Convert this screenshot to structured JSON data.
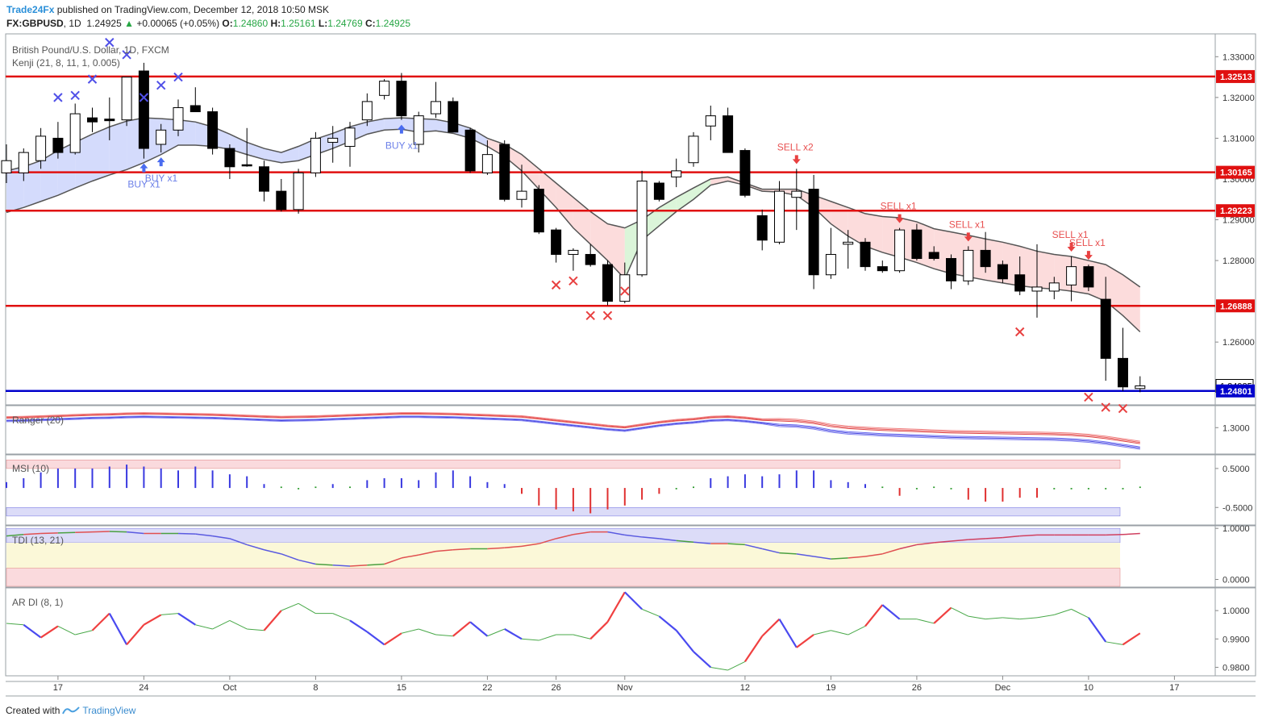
{
  "header": {
    "brand": "Trade24Fx",
    "published_text": "published on TradingView.com, December 12, 2018 10:50 MSK",
    "symbol": "FX:GBPUSD",
    "interval": "1D",
    "last": "1.24925",
    "change_arrow": "▲",
    "change": "+0.00065 (+0.05%)",
    "o_label": "O:",
    "open": "1.24860",
    "h_label": "H:",
    "high": "1.25161",
    "l_label": "L:",
    "low": "1.24769",
    "c_label": "C:",
    "close": "1.24925"
  },
  "legend": {
    "main_title": "British Pound/U.S. Dollar, 1D, FXCM",
    "kenji": "Kenji (21, 8, 11, 1, 0.005)",
    "ranger": "Ranger (20)",
    "msi": "MSI (10)",
    "tdi": "TDI (13, 21)",
    "ardi": "AR DI (8, 1)"
  },
  "footer": {
    "created_with": "Created with",
    "tradingview": "TradingView"
  },
  "colors": {
    "up_candle": "#ffffff",
    "down_candle": "#000000",
    "level_line": "#e01010",
    "support_line": "#0000cc",
    "buy_marker": "#4a6cf0",
    "sell_marker": "#e84040",
    "cross_blue": "#5050e8",
    "cross_red": "#e84040"
  },
  "chart_data": {
    "type": "candlestick",
    "x_axis_labels": [
      {
        "label": "17",
        "idx": 3
      },
      {
        "label": "24",
        "idx": 8
      },
      {
        "label": "Oct",
        "idx": 13
      },
      {
        "label": "8",
        "idx": 18
      },
      {
        "label": "15",
        "idx": 23
      },
      {
        "label": "22",
        "idx": 28
      },
      {
        "label": "26",
        "idx": 32
      },
      {
        "label": "Nov",
        "idx": 36
      },
      {
        "label": "12",
        "idx": 43
      },
      {
        "label": "19",
        "idx": 48
      },
      {
        "label": "26",
        "idx": 53
      },
      {
        "label": "Dec",
        "idx": 58
      },
      {
        "label": "10",
        "idx": 63
      },
      {
        "label": "17",
        "idx": 68
      }
    ],
    "price_axis": {
      "ticks": [
        "1.33000",
        "1.32000",
        "1.31000",
        "1.30000",
        "1.29000",
        "1.28000",
        "1.26000"
      ],
      "tick_values": [
        1.33,
        1.32,
        1.31,
        1.3,
        1.29,
        1.28,
        1.26
      ],
      "ylim": [
        1.2446,
        1.3356
      ]
    },
    "price_labels": [
      {
        "value": 1.32513,
        "label": "1.32513",
        "style": "red"
      },
      {
        "value": 1.30165,
        "label": "1.30165",
        "style": "red"
      },
      {
        "value": 1.29223,
        "label": "1.29223",
        "style": "red"
      },
      {
        "value": 1.26888,
        "label": "1.26888",
        "style": "red"
      },
      {
        "value": 1.24925,
        "label": "1.24925",
        "style": "plain"
      },
      {
        "value": 1.24801,
        "label": "1.24801",
        "style": "blue"
      }
    ],
    "horizontal_levels": [
      {
        "value": 1.32513,
        "color": "red"
      },
      {
        "value": 1.30165,
        "color": "red"
      },
      {
        "value": 1.29223,
        "color": "red"
      },
      {
        "value": 1.26888,
        "color": "red"
      },
      {
        "value": 1.24801,
        "color": "blue"
      }
    ],
    "candles": [
      {
        "o": 1.3015,
        "h": 1.3085,
        "l": 1.299,
        "c": 1.3045
      },
      {
        "o": 1.3015,
        "h": 1.3075,
        "l": 1.2995,
        "c": 1.3065
      },
      {
        "o": 1.3045,
        "h": 1.3125,
        "l": 1.3025,
        "c": 1.3105
      },
      {
        "o": 1.31,
        "h": 1.314,
        "l": 1.305,
        "c": 1.3065
      },
      {
        "o": 1.3065,
        "h": 1.3185,
        "l": 1.306,
        "c": 1.316
      },
      {
        "o": 1.315,
        "h": 1.3175,
        "l": 1.3115,
        "c": 1.314
      },
      {
        "o": 1.3147,
        "h": 1.32,
        "l": 1.3095,
        "c": 1.3143
      },
      {
        "o": 1.3145,
        "h": 1.3245,
        "l": 1.313,
        "c": 1.325
      },
      {
        "o": 1.3265,
        "h": 1.3285,
        "l": 1.305,
        "c": 1.3075
      },
      {
        "o": 1.3085,
        "h": 1.3135,
        "l": 1.3065,
        "c": 1.312
      },
      {
        "o": 1.312,
        "h": 1.3195,
        "l": 1.3105,
        "c": 1.3175
      },
      {
        "o": 1.318,
        "h": 1.3225,
        "l": 1.3165,
        "c": 1.3165
      },
      {
        "o": 1.3165,
        "h": 1.3175,
        "l": 1.306,
        "c": 1.3075
      },
      {
        "o": 1.3075,
        "h": 1.3085,
        "l": 1.3,
        "c": 1.303
      },
      {
        "o": 1.3035,
        "h": 1.3125,
        "l": 1.303,
        "c": 1.3032
      },
      {
        "o": 1.303,
        "h": 1.3045,
        "l": 1.2945,
        "c": 1.297
      },
      {
        "o": 1.297,
        "h": 1.3,
        "l": 1.292,
        "c": 1.2925
      },
      {
        "o": 1.2925,
        "h": 1.3025,
        "l": 1.2915,
        "c": 1.3015
      },
      {
        "o": 1.3015,
        "h": 1.3115,
        "l": 1.3005,
        "c": 1.31
      },
      {
        "o": 1.309,
        "h": 1.313,
        "l": 1.304,
        "c": 1.31
      },
      {
        "o": 1.308,
        "h": 1.314,
        "l": 1.303,
        "c": 1.3125
      },
      {
        "o": 1.3145,
        "h": 1.321,
        "l": 1.313,
        "c": 1.319
      },
      {
        "o": 1.3205,
        "h": 1.3245,
        "l": 1.3195,
        "c": 1.324
      },
      {
        "o": 1.324,
        "h": 1.326,
        "l": 1.3145,
        "c": 1.3155
      },
      {
        "o": 1.3085,
        "h": 1.3165,
        "l": 1.3065,
        "c": 1.3155
      },
      {
        "o": 1.316,
        "h": 1.3238,
        "l": 1.315,
        "c": 1.319
      },
      {
        "o": 1.319,
        "h": 1.32,
        "l": 1.3115,
        "c": 1.3115
      },
      {
        "o": 1.312,
        "h": 1.3125,
        "l": 1.3015,
        "c": 1.302
      },
      {
        "o": 1.3015,
        "h": 1.3095,
        "l": 1.301,
        "c": 1.306
      },
      {
        "o": 1.3085,
        "h": 1.3095,
        "l": 1.2945,
        "c": 1.295
      },
      {
        "o": 1.295,
        "h": 1.3035,
        "l": 1.293,
        "c": 1.297
      },
      {
        "o": 1.2975,
        "h": 1.2985,
        "l": 1.2865,
        "c": 1.287
      },
      {
        "o": 1.2875,
        "h": 1.288,
        "l": 1.2795,
        "c": 1.2815
      },
      {
        "o": 1.2815,
        "h": 1.283,
        "l": 1.2775,
        "c": 1.2825
      },
      {
        "o": 1.2815,
        "h": 1.284,
        "l": 1.2785,
        "c": 1.279
      },
      {
        "o": 1.279,
        "h": 1.28,
        "l": 1.269,
        "c": 1.27
      },
      {
        "o": 1.27,
        "h": 1.2795,
        "l": 1.2695,
        "c": 1.2765
      },
      {
        "o": 1.2765,
        "h": 1.302,
        "l": 1.276,
        "c": 1.2995
      },
      {
        "o": 1.299,
        "h": 1.2995,
        "l": 1.2945,
        "c": 1.295
      },
      {
        "o": 1.3005,
        "h": 1.305,
        "l": 1.298,
        "c": 1.302
      },
      {
        "o": 1.304,
        "h": 1.3115,
        "l": 1.303,
        "c": 1.3105
      },
      {
        "o": 1.313,
        "h": 1.318,
        "l": 1.3095,
        "c": 1.3155
      },
      {
        "o": 1.3155,
        "h": 1.3175,
        "l": 1.3065,
        "c": 1.3065
      },
      {
        "o": 1.307,
        "h": 1.3075,
        "l": 1.2955,
        "c": 1.296
      },
      {
        "o": 1.291,
        "h": 1.2925,
        "l": 1.2825,
        "c": 1.285
      },
      {
        "o": 1.2845,
        "h": 1.2995,
        "l": 1.284,
        "c": 1.297
      },
      {
        "o": 1.2955,
        "h": 1.3025,
        "l": 1.2875,
        "c": 1.297
      },
      {
        "o": 1.2975,
        "h": 1.301,
        "l": 1.273,
        "c": 1.2765
      },
      {
        "o": 1.2765,
        "h": 1.288,
        "l": 1.2755,
        "c": 1.2815
      },
      {
        "o": 1.284,
        "h": 1.2875,
        "l": 1.278,
        "c": 1.2845
      },
      {
        "o": 1.2845,
        "h": 1.2855,
        "l": 1.2775,
        "c": 1.2785
      },
      {
        "o": 1.2785,
        "h": 1.28,
        "l": 1.277,
        "c": 1.2775
      },
      {
        "o": 1.2775,
        "h": 1.288,
        "l": 1.277,
        "c": 1.2875
      },
      {
        "o": 1.2875,
        "h": 1.289,
        "l": 1.28,
        "c": 1.2805
      },
      {
        "o": 1.282,
        "h": 1.2835,
        "l": 1.28,
        "c": 1.2805
      },
      {
        "o": 1.2805,
        "h": 1.2815,
        "l": 1.273,
        "c": 1.275
      },
      {
        "o": 1.275,
        "h": 1.2835,
        "l": 1.274,
        "c": 1.2825
      },
      {
        "o": 1.2825,
        "h": 1.287,
        "l": 1.277,
        "c": 1.2785
      },
      {
        "o": 1.279,
        "h": 1.28,
        "l": 1.2745,
        "c": 1.2755
      },
      {
        "o": 1.2765,
        "h": 1.281,
        "l": 1.2715,
        "c": 1.2725
      },
      {
        "o": 1.2725,
        "h": 1.284,
        "l": 1.266,
        "c": 1.2735
      },
      {
        "o": 1.2725,
        "h": 1.276,
        "l": 1.2705,
        "c": 1.2745
      },
      {
        "o": 1.274,
        "h": 1.281,
        "l": 1.27,
        "c": 1.2785
      },
      {
        "o": 1.2785,
        "h": 1.279,
        "l": 1.2725,
        "c": 1.2735
      },
      {
        "o": 1.2705,
        "h": 1.276,
        "l": 1.2505,
        "c": 1.256
      },
      {
        "o": 1.256,
        "h": 1.2635,
        "l": 1.248,
        "c": 1.249
      },
      {
        "o": 1.2486,
        "h": 1.25161,
        "l": 1.24769,
        "c": 1.24925
      }
    ],
    "kenji_upper": [
      1.302,
      1.303,
      1.3045,
      1.307,
      1.309,
      1.311,
      1.3128,
      1.3142,
      1.315,
      1.3148,
      1.3145,
      1.314,
      1.3128,
      1.311,
      1.309,
      1.3075,
      1.3065,
      1.308,
      1.3098,
      1.3112,
      1.3128,
      1.314,
      1.3148,
      1.315,
      1.3148,
      1.3146,
      1.3138,
      1.3125,
      1.31,
      1.3085,
      1.306,
      1.3025,
      1.299,
      1.2955,
      1.292,
      1.289,
      1.288,
      1.29,
      1.293,
      1.2955,
      1.2978,
      1.3,
      1.3005,
      1.299,
      1.2975,
      1.2975,
      1.2975,
      1.296,
      1.2945,
      1.293,
      1.2915,
      1.2908,
      1.2905,
      1.2895,
      1.2878,
      1.287,
      1.2862,
      1.2853,
      1.2845,
      1.2835,
      1.2823,
      1.2815,
      1.281,
      1.28,
      1.279,
      1.2765,
      1.2735
    ],
    "kenji_lower": [
      1.2918,
      1.293,
      1.2945,
      1.296,
      1.2978,
      1.2995,
      1.301,
      1.3023,
      1.304,
      1.306,
      1.3083,
      1.3083,
      1.308,
      1.3073,
      1.306,
      1.3048,
      1.304,
      1.3045,
      1.306,
      1.3075,
      1.3092,
      1.311,
      1.312,
      1.3122,
      1.3115,
      1.3118,
      1.3112,
      1.31,
      1.308,
      1.3055,
      1.302,
      1.2975,
      1.293,
      1.288,
      1.284,
      1.28,
      1.2755,
      1.285,
      1.2885,
      1.292,
      1.295,
      1.2985,
      1.2995,
      1.2985,
      1.297,
      1.2968,
      1.296,
      1.293,
      1.289,
      1.286,
      1.2835,
      1.282,
      1.2808,
      1.2795,
      1.278,
      1.2768,
      1.276,
      1.2752,
      1.2745,
      1.2738,
      1.2733,
      1.273,
      1.2725,
      1.2718,
      1.27,
      1.2665,
      1.2625
    ],
    "signals": [
      {
        "type": "buy",
        "idx": 8,
        "label": "BUY x1"
      },
      {
        "type": "buy",
        "idx": 9,
        "label": "BUY x1"
      },
      {
        "type": "buy",
        "idx": 23,
        "label": "BUY x1"
      },
      {
        "type": "sell",
        "idx": 46,
        "label": "SELL x2"
      },
      {
        "type": "sell",
        "idx": 52,
        "label": "SELL x1"
      },
      {
        "type": "sell",
        "idx": 56,
        "label": "SELL x1"
      },
      {
        "type": "sell",
        "idx": 62,
        "label": "SELL x1"
      },
      {
        "type": "sell",
        "idx": 63,
        "label": "SELL x1"
      }
    ],
    "crosses": [
      {
        "idx": 3,
        "price": 1.32,
        "color": "blue"
      },
      {
        "idx": 4,
        "price": 1.3205,
        "color": "blue"
      },
      {
        "idx": 5,
        "price": 1.3245,
        "color": "blue"
      },
      {
        "idx": 6,
        "price": 1.3335,
        "color": "blue"
      },
      {
        "idx": 7,
        "price": 1.3305,
        "color": "blue"
      },
      {
        "idx": 8,
        "price": 1.32,
        "color": "blue"
      },
      {
        "idx": 9,
        "price": 1.323,
        "color": "blue"
      },
      {
        "idx": 10,
        "price": 1.325,
        "color": "blue"
      },
      {
        "idx": 32,
        "price": 1.274,
        "color": "red"
      },
      {
        "idx": 33,
        "price": 1.275,
        "color": "red"
      },
      {
        "idx": 34,
        "price": 1.2665,
        "color": "red"
      },
      {
        "idx": 35,
        "price": 1.2665,
        "color": "red"
      },
      {
        "idx": 36,
        "price": 1.2725,
        "color": "red"
      },
      {
        "idx": 59,
        "price": 1.2625,
        "color": "red"
      },
      {
        "idx": 63,
        "price": 1.2465,
        "color": "red"
      },
      {
        "idx": 64,
        "price": 1.244,
        "color": "red"
      },
      {
        "idx": 65,
        "price": 1.2437,
        "color": "red"
      }
    ],
    "ranger": {
      "ytick": "1.3000",
      "ytick_value": 1.3,
      "ylim": [
        1.258,
        1.335
      ],
      "mid": [
        1.3135,
        1.314,
        1.315,
        1.316,
        1.317,
        1.318,
        1.3185,
        1.3195,
        1.32,
        1.3195,
        1.319,
        1.3185,
        1.318,
        1.317,
        1.316,
        1.315,
        1.314,
        1.3145,
        1.315,
        1.316,
        1.317,
        1.318,
        1.319,
        1.32,
        1.32,
        1.3195,
        1.319,
        1.318,
        1.317,
        1.316,
        1.315,
        1.312,
        1.309,
        1.306,
        1.303,
        1.3,
        1.298,
        1.302,
        1.306,
        1.309,
        1.311,
        1.314,
        1.315,
        1.313,
        1.31,
        1.308,
        1.307,
        1.304,
        1.299,
        1.296,
        1.2945,
        1.293,
        1.292,
        1.291,
        1.29,
        1.289,
        1.2885,
        1.288,
        1.2875,
        1.287,
        1.2865,
        1.286,
        1.285,
        1.283,
        1.28,
        1.276,
        1.272
      ]
    },
    "msi": {
      "ticks": [
        "0.5000",
        "-0.5000"
      ],
      "tick_values": [
        0.5,
        -0.5
      ],
      "ylim": [
        -0.95,
        0.85
      ],
      "values": [
        0.15,
        0.25,
        0.4,
        0.5,
        0.5,
        0.5,
        0.55,
        0.6,
        0.55,
        0.5,
        0.45,
        0.55,
        0.45,
        0.35,
        0.3,
        0.1,
        0.0,
        -0.05,
        0.05,
        0.1,
        0.05,
        0.2,
        0.25,
        0.25,
        0.2,
        0.4,
        0.45,
        0.3,
        0.15,
        0.1,
        -0.15,
        -0.45,
        -0.55,
        -0.6,
        -0.65,
        -0.55,
        -0.45,
        -0.3,
        -0.15,
        -0.05,
        0.05,
        0.25,
        0.3,
        0.35,
        0.3,
        0.35,
        0.45,
        0.45,
        0.2,
        0.15,
        0.1,
        0.0,
        -0.2,
        -0.05,
        0.0,
        -0.05,
        -0.3,
        -0.35,
        -0.35,
        -0.25,
        -0.25,
        -0.05,
        -0.05,
        -0.05,
        -0.05,
        -0.03,
        0.01
      ]
    },
    "tdi": {
      "ticks": [
        "1.0000",
        "0.0000"
      ],
      "tick_values": [
        1.0,
        0.0
      ],
      "ylim": [
        -0.15,
        1.05
      ],
      "values": [
        0.85,
        0.88,
        0.9,
        0.91,
        0.92,
        0.93,
        0.94,
        0.93,
        0.9,
        0.9,
        0.9,
        0.89,
        0.85,
        0.8,
        0.68,
        0.58,
        0.5,
        0.38,
        0.3,
        0.28,
        0.26,
        0.28,
        0.3,
        0.42,
        0.48,
        0.55,
        0.58,
        0.6,
        0.6,
        0.62,
        0.65,
        0.7,
        0.8,
        0.88,
        0.93,
        0.93,
        0.87,
        0.83,
        0.8,
        0.76,
        0.73,
        0.7,
        0.7,
        0.68,
        0.6,
        0.52,
        0.5,
        0.45,
        0.4,
        0.42,
        0.45,
        0.5,
        0.6,
        0.68,
        0.72,
        0.75,
        0.78,
        0.8,
        0.82,
        0.85,
        0.87,
        0.87,
        0.87,
        0.87,
        0.87,
        0.88,
        0.9
      ]
    },
    "ardi": {
      "ticks": [
        "1.0000",
        "0.9900",
        "0.9800"
      ],
      "tick_values": [
        1.0,
        0.99,
        0.98
      ],
      "ylim": [
        0.977,
        1.008
      ],
      "values": [
        0.9955,
        0.995,
        0.9905,
        0.9945,
        0.9915,
        0.993,
        0.999,
        0.988,
        0.995,
        0.9985,
        0.999,
        0.995,
        0.9935,
        0.9965,
        0.9935,
        0.993,
        1.0,
        1.0025,
        0.999,
        0.999,
        0.9965,
        0.9925,
        0.988,
        0.992,
        0.9935,
        0.9915,
        0.991,
        0.996,
        0.991,
        0.9935,
        0.99,
        0.9895,
        0.9915,
        0.9915,
        0.99,
        0.996,
        1.0065,
        1.0005,
        0.998,
        0.993,
        0.9855,
        0.98,
        0.979,
        0.982,
        0.991,
        0.997,
        0.987,
        0.9915,
        0.993,
        0.9915,
        0.9945,
        1.002,
        0.997,
        0.997,
        0.9955,
        1.001,
        0.998,
        0.997,
        0.9975,
        0.997,
        0.9975,
        0.9985,
        1.0005,
        0.9975,
        0.989,
        0.988,
        0.992
      ]
    }
  }
}
